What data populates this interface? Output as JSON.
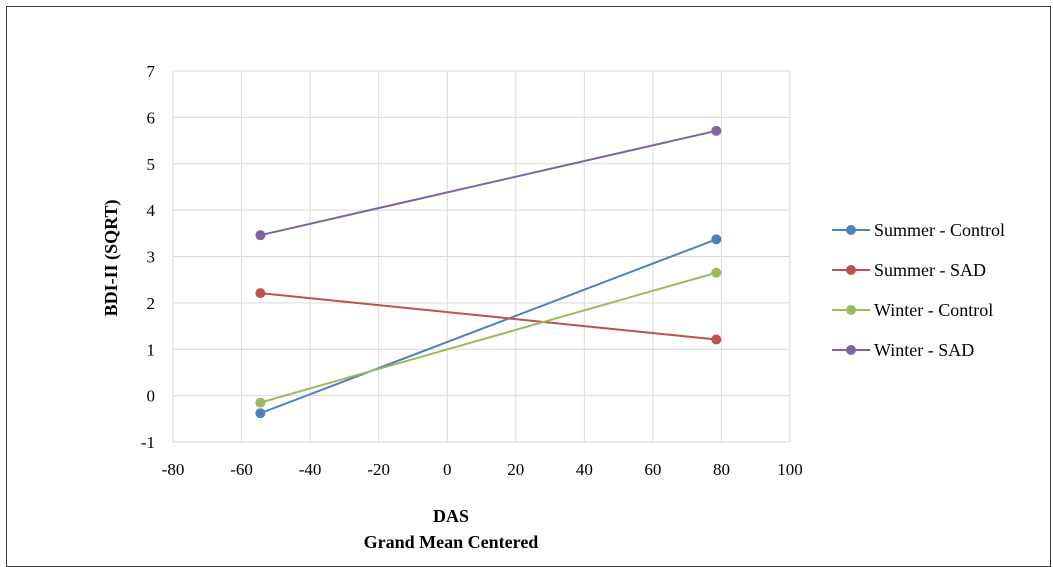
{
  "chart_data": {
    "type": "line",
    "title": "",
    "ylabel": "BDI-II (SQRT)",
    "xlabel_lines": [
      "DAS",
      "Grand Mean Centered"
    ],
    "xlim": [
      -80,
      100
    ],
    "ylim": [
      -1,
      7
    ],
    "x_ticks": [
      -80,
      -60,
      -40,
      -20,
      0,
      20,
      40,
      60,
      80,
      100
    ],
    "y_ticks": [
      -1,
      0,
      1,
      2,
      3,
      4,
      5,
      6,
      7
    ],
    "grid": true,
    "legend_position": "right",
    "x": [
      -54.5,
      78.5
    ],
    "series": [
      {
        "name": "Summer - Control",
        "color": "#4f81bd",
        "values": [
          -0.38,
          3.37
        ]
      },
      {
        "name": "Summer - SAD",
        "color": "#c0504d",
        "values": [
          2.21,
          1.21
        ]
      },
      {
        "name": "Winter - Control",
        "color": "#9bbb59",
        "values": [
          -0.15,
          2.65
        ]
      },
      {
        "name": "Winter - SAD",
        "color": "#8064a2",
        "values": [
          3.46,
          5.71
        ]
      }
    ]
  }
}
